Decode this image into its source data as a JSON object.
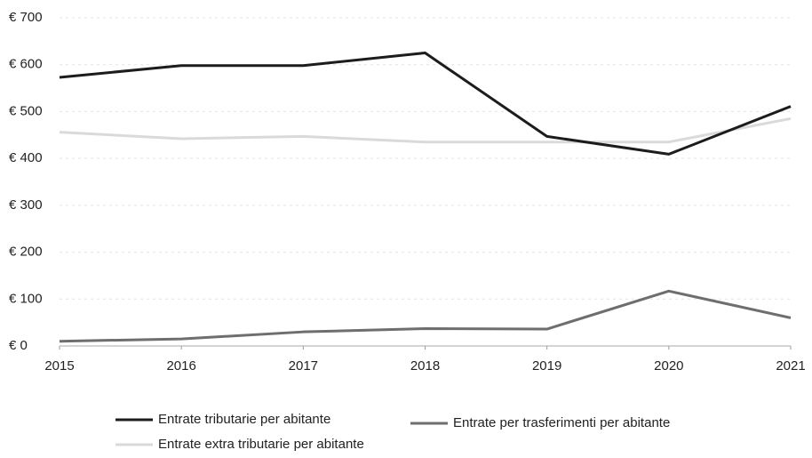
{
  "chart_data": {
    "type": "line",
    "x": [
      2015,
      2016,
      2017,
      2018,
      2019,
      2020,
      2021
    ],
    "xlim": [
      2015,
      2021
    ],
    "xticks": [
      2015,
      2016,
      2017,
      2018,
      2019,
      2020,
      2021
    ],
    "ylim": [
      0,
      700
    ],
    "yticks": [
      {
        "value": 0,
        "label": "€ 0"
      },
      {
        "value": 100,
        "label": "€ 100"
      },
      {
        "value": 200,
        "label": "€ 200"
      },
      {
        "value": 300,
        "label": "€ 300"
      },
      {
        "value": 400,
        "label": "€ 400"
      },
      {
        "value": 500,
        "label": "€ 500"
      },
      {
        "value": 600,
        "label": "€ 600"
      },
      {
        "value": 700,
        "label": "€ 700"
      }
    ],
    "grid": true,
    "series": [
      {
        "name": "Entrate tributarie per abitante",
        "color": "#1c1c1c",
        "values": [
          573,
          598,
          598,
          625,
          447,
          409,
          511
        ]
      },
      {
        "name": "Entrate per trasferimenti per abitante",
        "color": "#6e6e6e",
        "values": [
          10,
          15,
          30,
          37,
          36,
          117,
          60
        ]
      },
      {
        "name": "Entrate extra tributarie per abitante",
        "color": "#dadada",
        "values": [
          456,
          442,
          447,
          435,
          435,
          435,
          485
        ]
      }
    ]
  }
}
